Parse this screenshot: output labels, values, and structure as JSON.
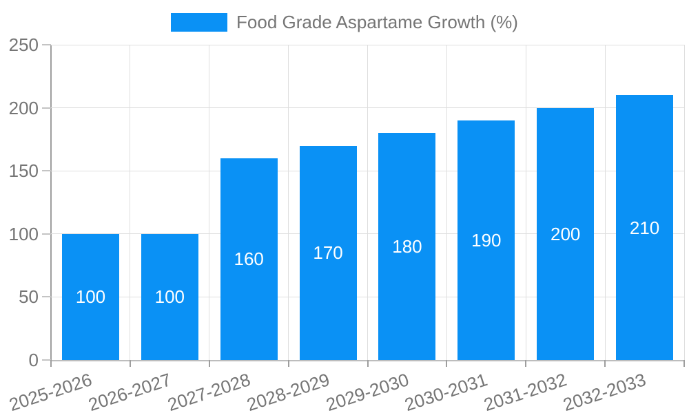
{
  "colors": {
    "background": "#FFFFFF",
    "bar": "#0A91F5",
    "grid": "#DEDEDE",
    "axis": "#9E9E9E",
    "axis_light": "#BDBDBD",
    "tick": "#C4C4C4",
    "tick_text": "#757575",
    "value_label": "#FFFFFF"
  },
  "chart_data": {
    "type": "bar",
    "title": "Food Grade Aspartame Growth (%)",
    "categories": [
      "2025-2026",
      "2026-2027",
      "2027-2028",
      "2028-2029",
      "2029-2030",
      "2030-2031",
      "2031-2032",
      "2032-2033"
    ],
    "values": [
      100,
      100,
      160,
      170,
      180,
      190,
      200,
      210
    ],
    "value_labels": [
      "100",
      "100",
      "160",
      "170",
      "180",
      "190",
      "200",
      "210"
    ],
    "xlabel": "",
    "ylabel": "",
    "ylim": [
      0,
      250
    ],
    "yticks": [
      0,
      50,
      100,
      150,
      200,
      250
    ],
    "grid": true,
    "legend_position": "top-center",
    "value_label_position": "inside-center",
    "x_label_rotation_deg": -18
  }
}
